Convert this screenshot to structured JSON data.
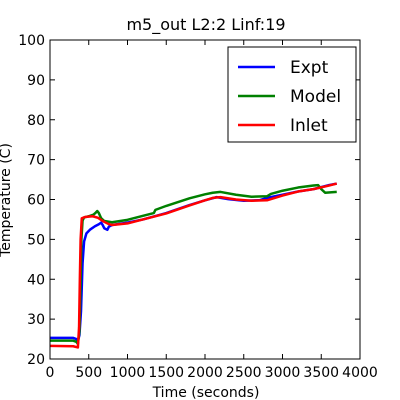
{
  "chart_data": {
    "type": "line",
    "title": "m5_out L2:2 Linf:19",
    "xlabel": "Time (seconds)",
    "ylabel": "Temperature (C)",
    "xlim": [
      0,
      4000
    ],
    "ylim": [
      20,
      100
    ],
    "xticks": [
      0,
      500,
      1000,
      1500,
      2000,
      2500,
      3000,
      3500,
      4000
    ],
    "yticks": [
      20,
      30,
      40,
      50,
      60,
      70,
      80,
      90,
      100
    ],
    "grid": false,
    "legend_position": "top-right",
    "series": [
      {
        "name": "Expt",
        "color": "#0000ff",
        "points": [
          [
            0,
            25.3
          ],
          [
            300,
            25.3
          ],
          [
            340,
            25.0
          ],
          [
            360,
            24.5
          ],
          [
            380,
            26
          ],
          [
            400,
            32
          ],
          [
            420,
            44
          ],
          [
            440,
            49.5
          ],
          [
            470,
            51.5
          ],
          [
            520,
            52.5
          ],
          [
            580,
            53.3
          ],
          [
            630,
            53.8
          ],
          [
            660,
            54.2
          ],
          [
            680,
            53.6
          ],
          [
            700,
            52.8
          ],
          [
            740,
            52.4
          ],
          [
            760,
            53.2
          ],
          [
            800,
            53.6
          ],
          [
            1000,
            54.2
          ],
          [
            1200,
            55.0
          ],
          [
            1500,
            56.6
          ],
          [
            1800,
            58.6
          ],
          [
            2000,
            59.8
          ],
          [
            2150,
            60.6
          ],
          [
            2300,
            60.1
          ],
          [
            2500,
            59.7
          ],
          [
            2700,
            59.8
          ],
          [
            2800,
            60.4
          ],
          [
            3000,
            61.2
          ],
          [
            3200,
            62.0
          ],
          [
            3400,
            62.6
          ],
          [
            3600,
            63.6
          ],
          [
            3700,
            64.0
          ]
        ]
      },
      {
        "name": "Model",
        "color": "#008000",
        "points": [
          [
            0,
            24.6
          ],
          [
            300,
            24.6
          ],
          [
            340,
            24.3
          ],
          [
            360,
            23.8
          ],
          [
            380,
            27
          ],
          [
            395,
            40
          ],
          [
            405,
            50
          ],
          [
            420,
            54.7
          ],
          [
            440,
            55.5
          ],
          [
            500,
            55.8
          ],
          [
            560,
            56.2
          ],
          [
            590,
            56.7
          ],
          [
            610,
            57.1
          ],
          [
            630,
            56.6
          ],
          [
            660,
            55.3
          ],
          [
            700,
            54.6
          ],
          [
            800,
            54.3
          ],
          [
            1000,
            54.9
          ],
          [
            1200,
            55.9
          ],
          [
            1340,
            56.6
          ],
          [
            1360,
            57.4
          ],
          [
            1500,
            58.4
          ],
          [
            1800,
            60.3
          ],
          [
            2000,
            61.3
          ],
          [
            2100,
            61.7
          ],
          [
            2200,
            61.9
          ],
          [
            2400,
            61.2
          ],
          [
            2600,
            60.7
          ],
          [
            2800,
            60.8
          ],
          [
            2850,
            61.4
          ],
          [
            3000,
            62.2
          ],
          [
            3200,
            63.0
          ],
          [
            3400,
            63.5
          ],
          [
            3460,
            63.6
          ],
          [
            3500,
            62.6
          ],
          [
            3550,
            61.7
          ],
          [
            3700,
            61.9
          ]
        ]
      },
      {
        "name": "Inlet",
        "color": "#ff0000",
        "points": [
          [
            0,
            23.3
          ],
          [
            300,
            23.2
          ],
          [
            340,
            23.0
          ],
          [
            360,
            22.9
          ],
          [
            375,
            28
          ],
          [
            385,
            40
          ],
          [
            395,
            50
          ],
          [
            410,
            55.3
          ],
          [
            450,
            55.6
          ],
          [
            550,
            55.8
          ],
          [
            620,
            55.4
          ],
          [
            680,
            54.6
          ],
          [
            750,
            53.9
          ],
          [
            800,
            53.6
          ],
          [
            1000,
            54.0
          ],
          [
            1200,
            55.0
          ],
          [
            1500,
            56.5
          ],
          [
            1800,
            58.5
          ],
          [
            2000,
            59.8
          ],
          [
            2100,
            60.4
          ],
          [
            2200,
            60.6
          ],
          [
            2400,
            60.0
          ],
          [
            2600,
            59.7
          ],
          [
            2800,
            59.8
          ],
          [
            3000,
            61.0
          ],
          [
            3200,
            62.0
          ],
          [
            3400,
            62.6
          ],
          [
            3600,
            63.5
          ],
          [
            3700,
            64.0
          ]
        ]
      }
    ]
  }
}
